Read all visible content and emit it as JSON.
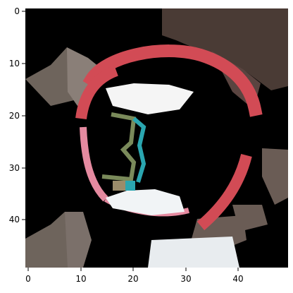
{
  "image": {
    "description_tag": "pixelated-circular-fragment",
    "colors": {
      "background": "#000000",
      "frame": "#000000",
      "red_ring": "#d24b55",
      "pink_ring": "#e58aa0",
      "white_patch": "#f5f5f5",
      "gray_blob": "#6e645c",
      "dark_wedge": "#3a3532",
      "cyan_accent": "#2aa6b0",
      "green_accent": "#7a8a5a"
    }
  },
  "axes": {
    "x_ticks": [
      "0",
      "10",
      "20",
      "30",
      "40"
    ],
    "y_ticks": [
      "0",
      "10",
      "20",
      "30",
      "40"
    ],
    "x_range": [
      -0.5,
      49.5
    ],
    "y_range": [
      49.5,
      -0.5
    ]
  }
}
